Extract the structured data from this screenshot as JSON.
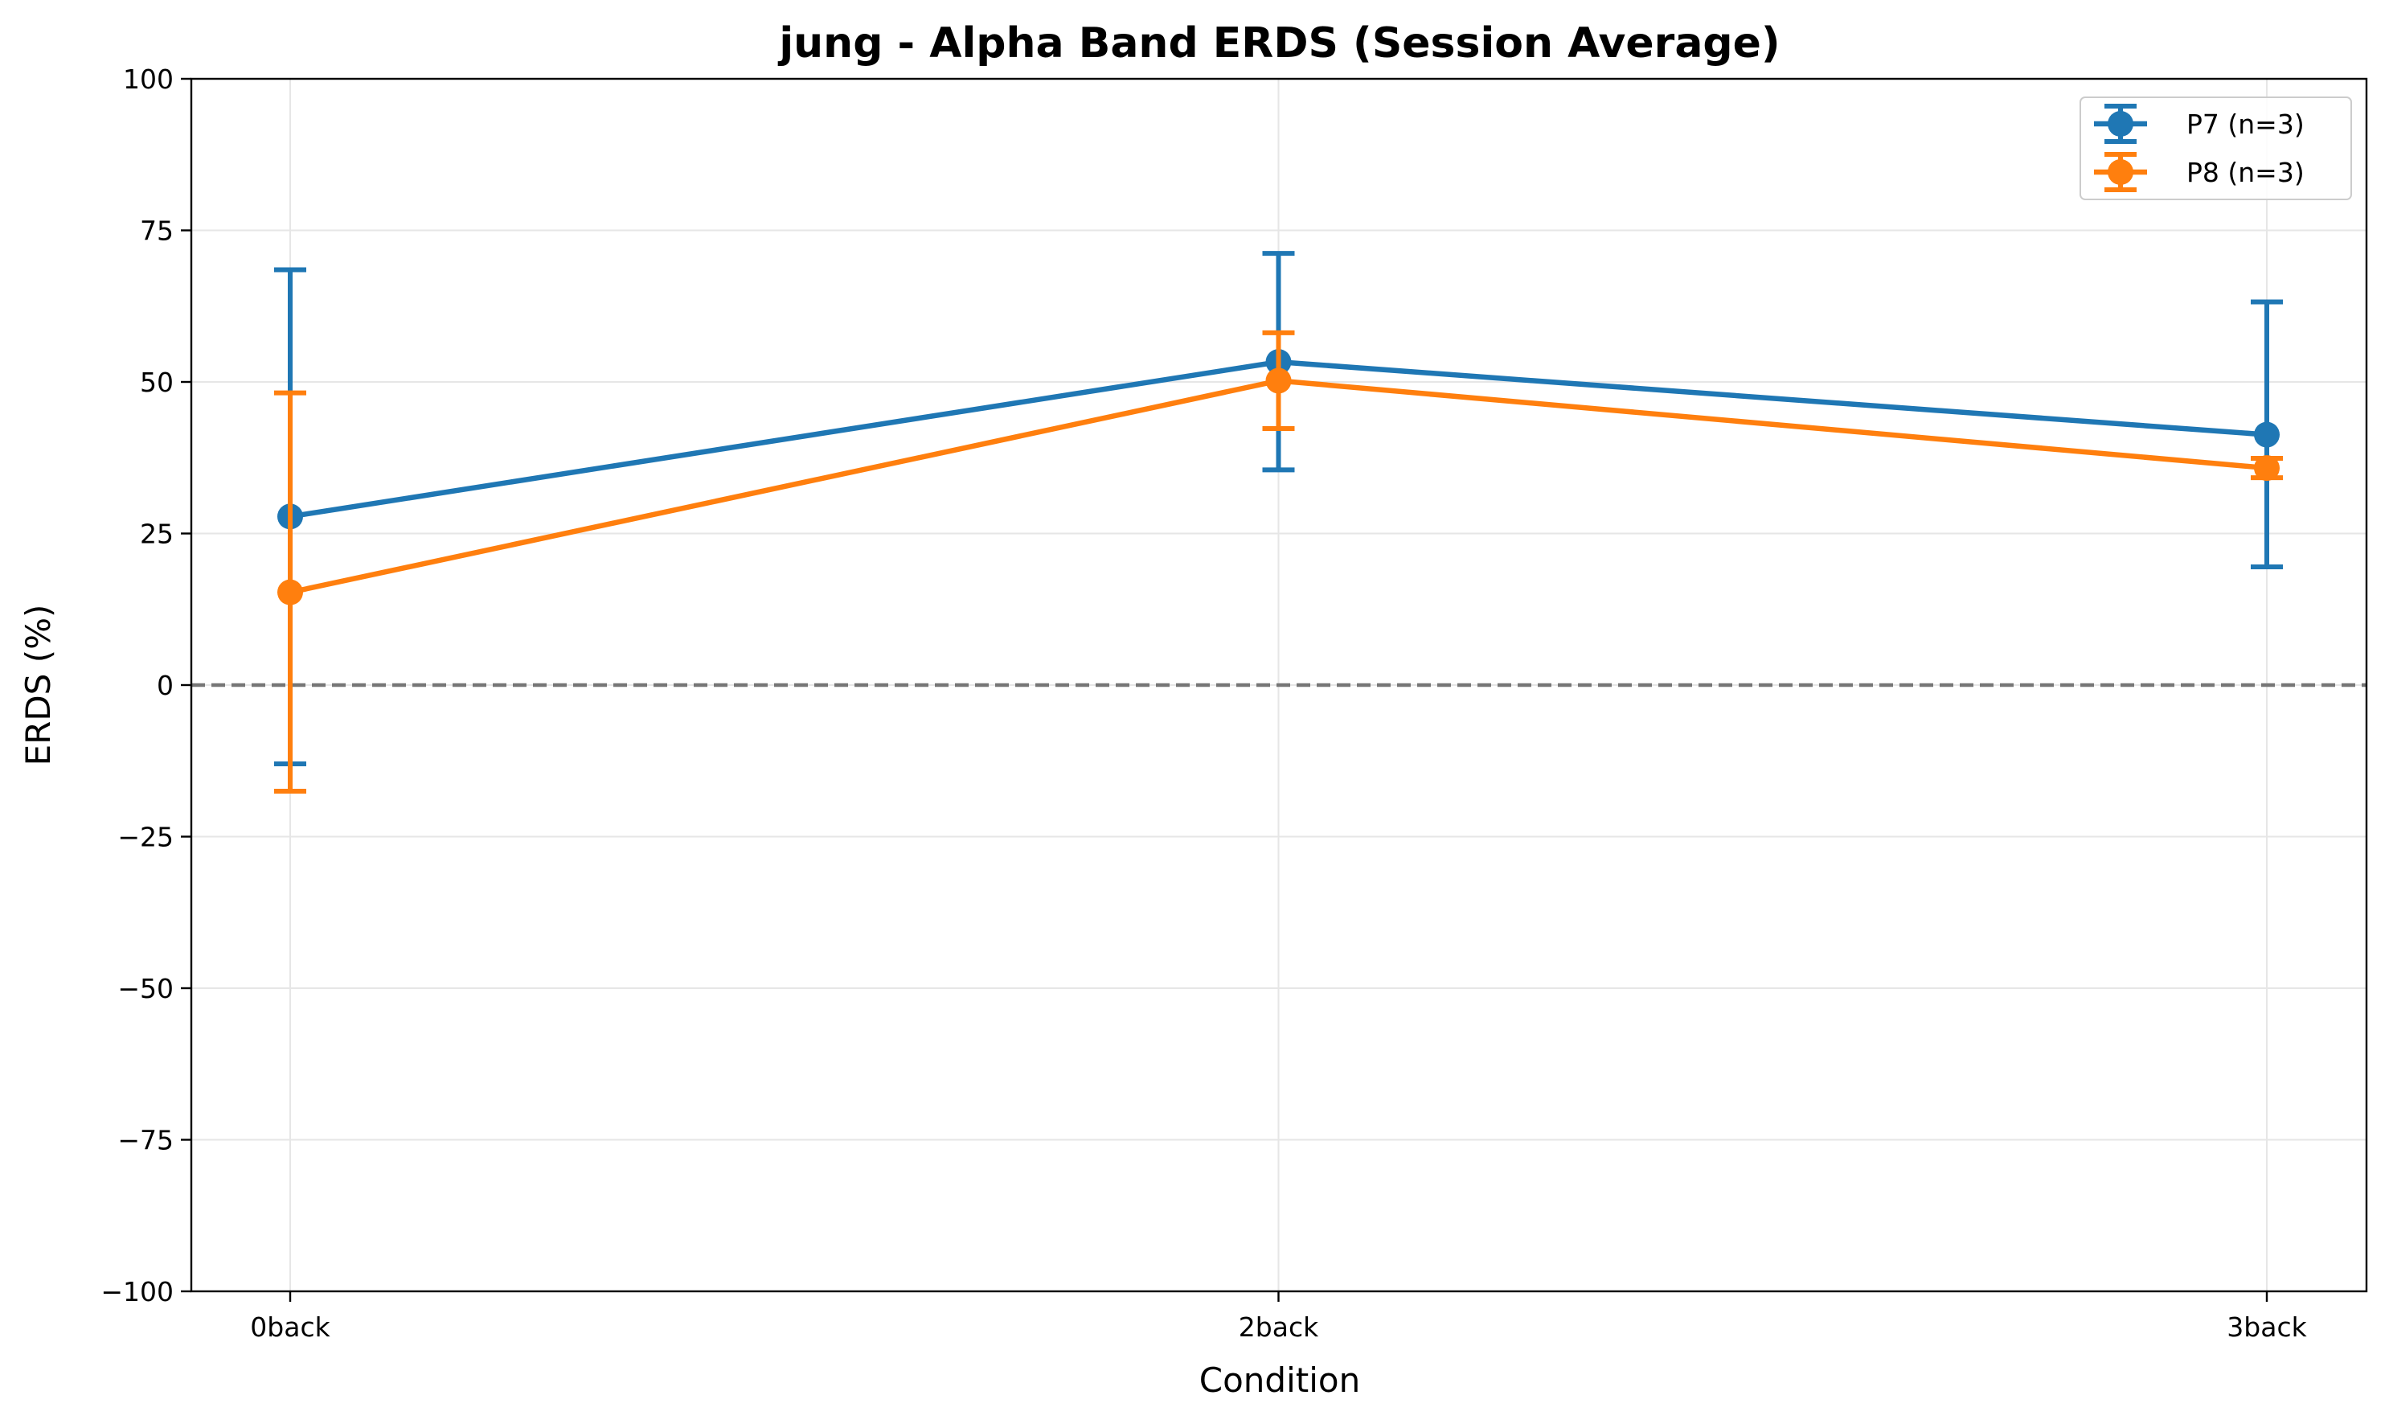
{
  "chart_data": {
    "type": "line",
    "title": "jung - Alpha Band ERDS (Session Average)",
    "xlabel": "Condition",
    "ylabel": "ERDS (%)",
    "categories": [
      "0back",
      "2back",
      "3back"
    ],
    "ylim": [
      -100,
      100
    ],
    "yticks": [
      -100,
      -75,
      -50,
      -25,
      0,
      25,
      50,
      75,
      100
    ],
    "ytick_labels": [
      "−100",
      "−75",
      "−50",
      "−25",
      "0",
      "25",
      "50",
      "75",
      "100"
    ],
    "grid": true,
    "reference_line": {
      "y": 0,
      "style": "dashed",
      "color": "#767676"
    },
    "legend_position": "top-right",
    "series": [
      {
        "name": "P7 (n=3)",
        "color": "#1f77b4",
        "values": [
          27.8,
          53.3,
          41.3
        ],
        "err_low": [
          -13.0,
          35.5,
          19.5
        ],
        "err_high": [
          68.5,
          71.2,
          63.2
        ]
      },
      {
        "name": "P8 (n=3)",
        "color": "#ff7f0e",
        "values": [
          15.3,
          50.2,
          35.8
        ],
        "err_low": [
          -17.5,
          42.3,
          34.2
        ],
        "err_high": [
          48.2,
          58.1,
          37.4
        ]
      }
    ]
  }
}
